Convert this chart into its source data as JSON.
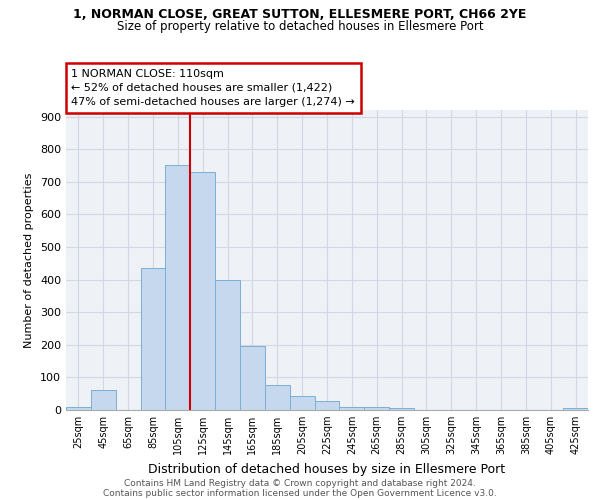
{
  "title_line1": "1, NORMAN CLOSE, GREAT SUTTON, ELLESMERE PORT, CH66 2YE",
  "title_line2": "Size of property relative to detached houses in Ellesmere Port",
  "xlabel": "Distribution of detached houses by size in Ellesmere Port",
  "ylabel": "Number of detached properties",
  "footnote1": "Contains HM Land Registry data © Crown copyright and database right 2024.",
  "footnote2": "Contains public sector information licensed under the Open Government Licence v3.0.",
  "bar_labels": [
    "25sqm",
    "45sqm",
    "65sqm",
    "85sqm",
    "105sqm",
    "125sqm",
    "145sqm",
    "165sqm",
    "185sqm",
    "205sqm",
    "225sqm",
    "245sqm",
    "265sqm",
    "285sqm",
    "305sqm",
    "325sqm",
    "345sqm",
    "365sqm",
    "385sqm",
    "405sqm",
    "425sqm"
  ],
  "bar_values": [
    10,
    60,
    0,
    435,
    750,
    730,
    400,
    197,
    78,
    43,
    27,
    10,
    10,
    7,
    0,
    0,
    0,
    0,
    0,
    0,
    7
  ],
  "bar_color": "#c5d8ed",
  "bar_edgecolor": "#7bafd4",
  "grid_color": "#d0d8e4",
  "bg_color": "#eef2f7",
  "property_line_x": 4.5,
  "property_line_color": "#cc0000",
  "annotation_line1": "1 NORMAN CLOSE: 110sqm",
  "annotation_line2": "← 52% of detached houses are smaller (1,422)",
  "annotation_line3": "47% of semi-detached houses are larger (1,274) →",
  "annotation_box_color": "#cc0000",
  "ylim": [
    0,
    920
  ],
  "yticks": [
    0,
    100,
    200,
    300,
    400,
    500,
    600,
    700,
    800,
    900
  ]
}
